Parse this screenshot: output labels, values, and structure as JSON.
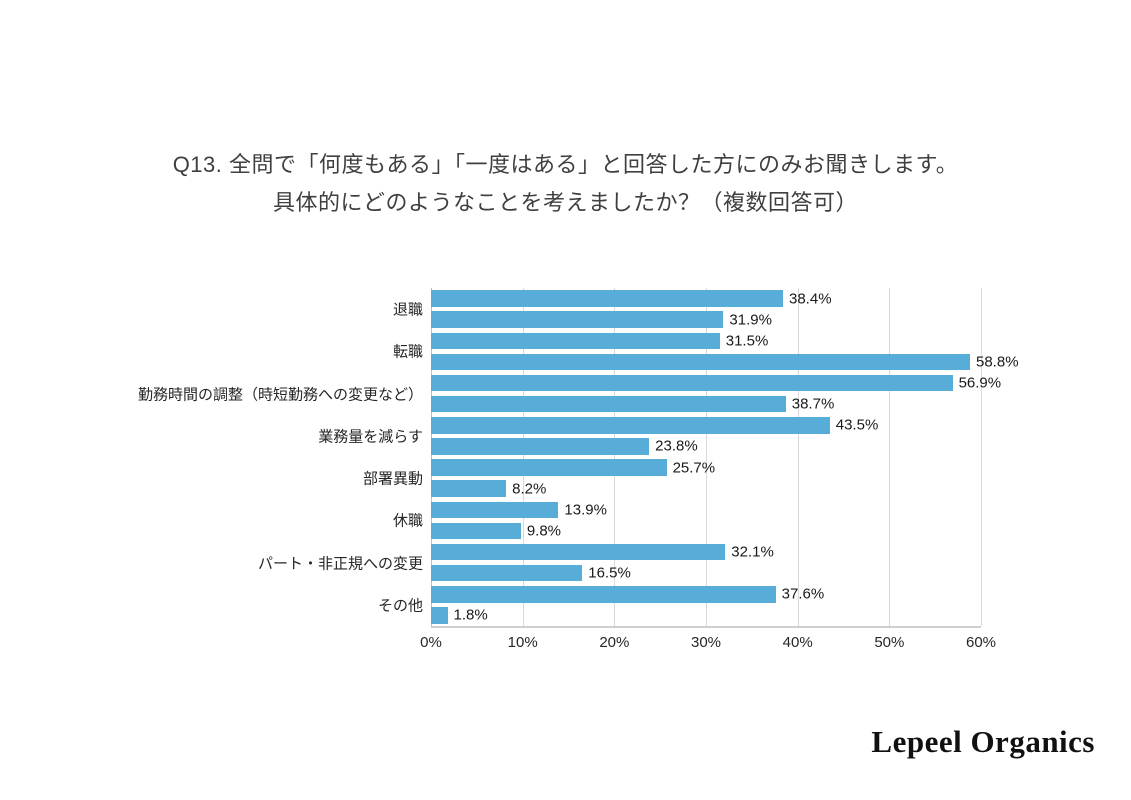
{
  "title": {
    "line1": "Q13. 全問で「何度もある」「一度はある」と回答した方にのみお聞きします。",
    "line2": "具体的にどのようなことを考えましたか？（複数回答可）"
  },
  "chart_data": {
    "type": "bar",
    "orientation": "horizontal",
    "title": "Q13. 全問で「何度もある」「一度はある」と回答した方にのみお聞きします。具体的にどのようなことを考えましたか？（複数回答可）",
    "categories": [
      "退職",
      "転職",
      "勤務時間の調整（時短勤務への変更など）",
      "業務量を減らす",
      "部署異動",
      "休職",
      "パート・非正規への変更",
      "その他"
    ],
    "series": [
      {
        "name": "upper-bar",
        "values": [
          38.4,
          31.5,
          56.9,
          43.5,
          25.7,
          13.9,
          32.1,
          37.6
        ]
      },
      {
        "name": "lower-bar",
        "values": [
          31.9,
          58.8,
          38.7,
          23.8,
          8.2,
          9.8,
          16.5,
          1.8
        ]
      }
    ],
    "value_label_format": "{value}%",
    "x_ticks": [
      "0%",
      "10%",
      "20%",
      "30%",
      "40%",
      "50%",
      "60%"
    ],
    "xlim": [
      0,
      60
    ],
    "bar_color": "#58ACD8",
    "grid": true,
    "legend": false
  },
  "footer": {
    "brand": "Lepeel Organics"
  }
}
